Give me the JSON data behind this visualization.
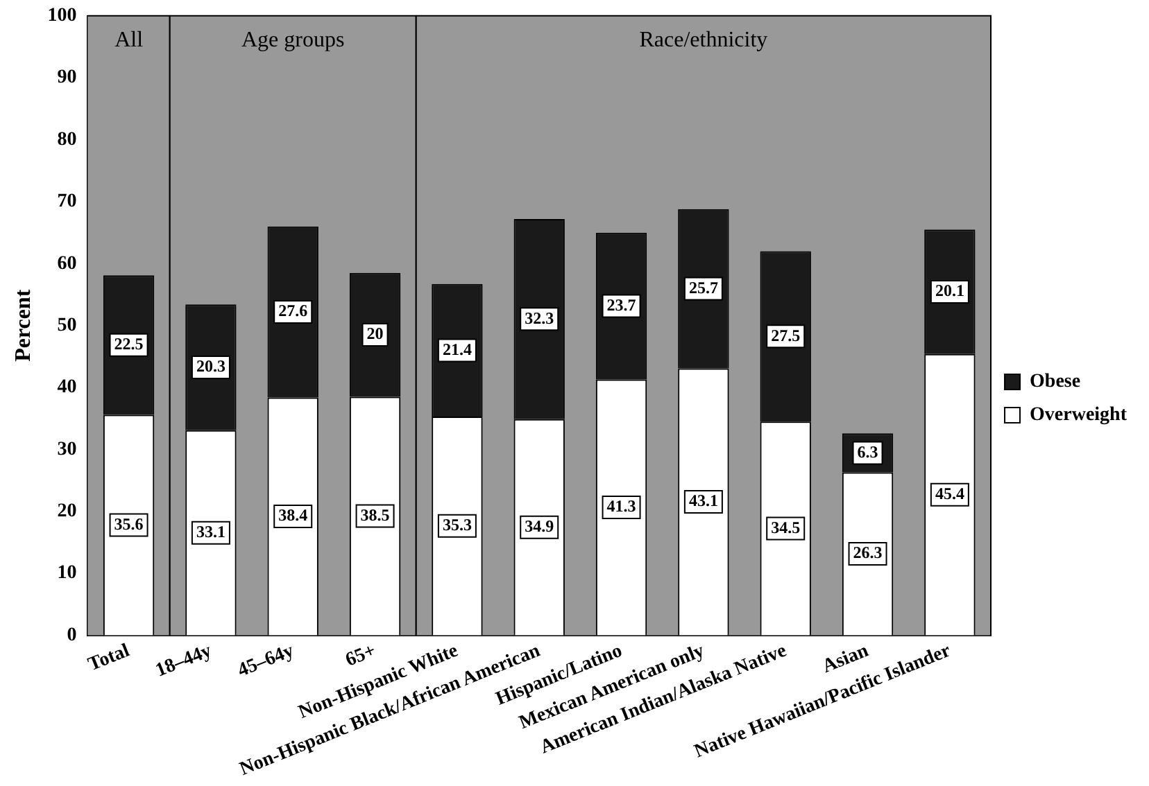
{
  "chart_data": {
    "type": "bar",
    "stacked": true,
    "ylabel": "Percent",
    "categories": [
      "Total",
      "18–44y",
      "45–64y",
      "65+",
      "Non-Hispanic White",
      "Non-Hispanic Black/African American",
      "Hispanic/Latino",
      "Mexican American only",
      "American Indian/Alaska Native",
      "Asian",
      "Native Hawaiian/Pacific Islander"
    ],
    "series": [
      {
        "name": "Overweight",
        "color": "#ffffff",
        "values": [
          35.6,
          33.1,
          38.4,
          38.5,
          35.3,
          34.9,
          41.3,
          43.1,
          34.5,
          26.3,
          45.4
        ]
      },
      {
        "name": "Obese",
        "color": "#1a1a1a",
        "values": [
          22.5,
          20.3,
          27.6,
          20,
          21.4,
          32.3,
          23.7,
          25.7,
          27.5,
          6.3,
          20.1
        ]
      }
    ],
    "bands": [
      {
        "axis": "x",
        "from": "Total",
        "to": "Total",
        "label": "All",
        "color": "#999999"
      },
      {
        "axis": "x",
        "from": "18–44y",
        "to": "65+",
        "label": "Age groups",
        "color": "#999999"
      },
      {
        "axis": "x",
        "from": "Non-Hispanic White",
        "to": "Native Hawaiian/Pacific Islander",
        "label": "Race/ethnicity",
        "color": "#999999"
      }
    ],
    "ylim": [
      0,
      100
    ],
    "yticks": [
      0,
      10,
      20,
      30,
      40,
      50,
      60,
      70,
      80,
      90,
      100
    ],
    "data_labels": true,
    "grid": false,
    "legend": "right"
  }
}
